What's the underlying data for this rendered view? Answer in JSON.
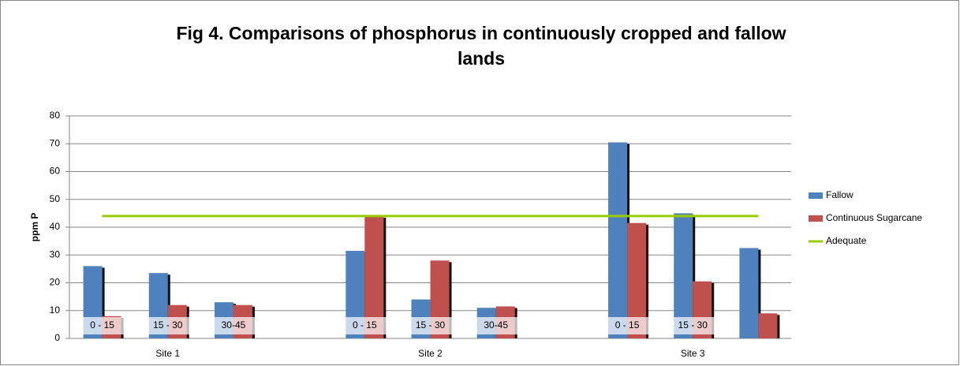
{
  "chart_data": {
    "type": "bar",
    "title": "Fig 4. Comparisons of phosphorus in continuously cropped and fallow lands",
    "y_label": "ppm P",
    "categories": [
      "0 - 15",
      "15 - 30",
      "30-45",
      null,
      "0 - 15",
      "15 - 30",
      "30-45",
      null,
      "0 - 15",
      "15 - 30",
      null
    ],
    "x_group_labels": [
      null,
      "Site 1",
      null,
      null,
      null,
      "Site 2",
      null,
      null,
      null,
      "Site 3",
      null
    ],
    "series": [
      {
        "name": "Fallow",
        "type": "bar",
        "color": "#4f81bd",
        "values": [
          26,
          23.5,
          13,
          null,
          31.5,
          14,
          11,
          null,
          70.5,
          45,
          32.5
        ]
      },
      {
        "name": "Continuous Sugarcane",
        "type": "bar",
        "color": "#c0504d",
        "values": [
          8,
          12,
          12,
          null,
          44,
          28,
          11.5,
          null,
          41.5,
          20.5,
          9
        ]
      },
      {
        "name": "Adequate",
        "type": "line",
        "color": "#99cc00",
        "values": [
          44,
          44,
          44,
          44,
          44,
          44,
          44,
          44,
          44,
          44,
          44
        ]
      }
    ],
    "ylim": [
      0,
      80
    ],
    "yticks": [
      0,
      10,
      20,
      30,
      40,
      50,
      60,
      70,
      80
    ],
    "grid": true,
    "legend": "right"
  }
}
